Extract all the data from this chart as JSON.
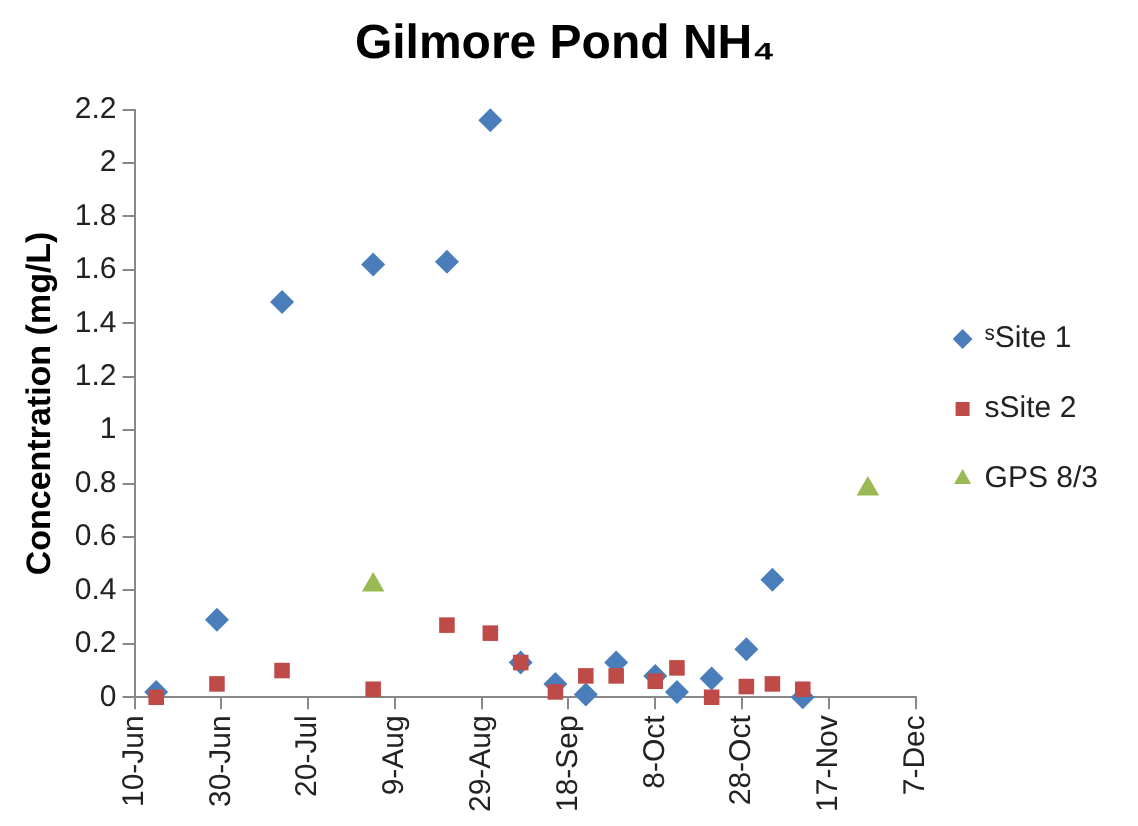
{
  "chart_data": {
    "type": "scatter",
    "title": "Gilmore Pond NH₄",
    "ylabel": "Concentration (mg/L)",
    "xlim": [
      "--06-10",
      "--12-07"
    ],
    "xticks": [
      {
        "value": "--06-10",
        "label": "10-Jun"
      },
      {
        "value": "--06-30",
        "label": "30-Jun"
      },
      {
        "value": "--07-20",
        "label": "20-Jul"
      },
      {
        "value": "--08-09",
        "label": "9-Aug"
      },
      {
        "value": "--08-29",
        "label": "29-Aug"
      },
      {
        "value": "--09-18",
        "label": "18-Sep"
      },
      {
        "value": "--10-08",
        "label": "8-Oct"
      },
      {
        "value": "--10-28",
        "label": "28-Oct"
      },
      {
        "value": "--11-17",
        "label": "17-Nov"
      },
      {
        "value": "--12-07",
        "label": "7-Dec"
      }
    ],
    "ylim": [
      0,
      2.2
    ],
    "yticks": [
      0,
      0.2,
      0.4,
      0.6,
      0.8,
      1,
      1.2,
      1.4,
      1.6,
      1.8,
      2,
      2.2
    ],
    "grid": false,
    "legend": "right",
    "series": [
      {
        "name": "ˢSite 1",
        "color": "#4a7ebb",
        "marker": "diamond",
        "x": [
          "--06-15",
          "--06-29",
          "--07-14",
          "--08-04",
          "--08-21",
          "--08-31",
          "--09-07",
          "--09-15",
          "--09-22",
          "--09-29",
          "--10-08",
          "--10-13",
          "--10-21",
          "--10-29",
          "--11-04",
          "--11-11"
        ],
        "values": [
          0.02,
          0.29,
          1.48,
          1.62,
          1.63,
          2.16,
          0.13,
          0.05,
          0.01,
          0.13,
          0.08,
          0.02,
          0.07,
          0.18,
          0.44,
          0.0
        ]
      },
      {
        "name": "sSite 2",
        "color": "#be4b48",
        "marker": "square",
        "x": [
          "--06-15",
          "--06-29",
          "--07-14",
          "--08-04",
          "--08-21",
          "--08-31",
          "--09-07",
          "--09-15",
          "--09-22",
          "--09-29",
          "--10-08",
          "--10-13",
          "--10-21",
          "--10-29",
          "--11-04",
          "--11-11"
        ],
        "values": [
          0.0,
          0.05,
          0.1,
          0.03,
          0.27,
          0.24,
          0.13,
          0.02,
          0.08,
          0.08,
          0.06,
          0.11,
          0.0,
          0.04,
          0.05,
          0.03
        ]
      },
      {
        "name": "GPS 8/3",
        "color": "#98b954",
        "marker": "triangle",
        "x": [
          "--08-04",
          "--11-26"
        ],
        "values": [
          0.42,
          0.78
        ]
      }
    ]
  }
}
